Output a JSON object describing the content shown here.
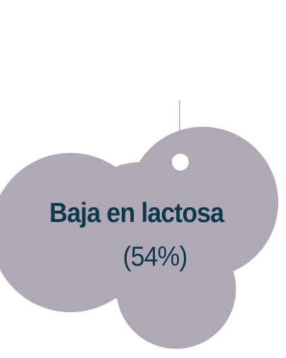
{
  "tag": {
    "label": "Baja en lactosa",
    "percent": "(54%)"
  },
  "colors": {
    "cloud_fill": "#b1a8b6",
    "text": "#0b3a4c",
    "string": "#8a8a8a",
    "hole": "#ffffff",
    "background": "#ffffff"
  }
}
